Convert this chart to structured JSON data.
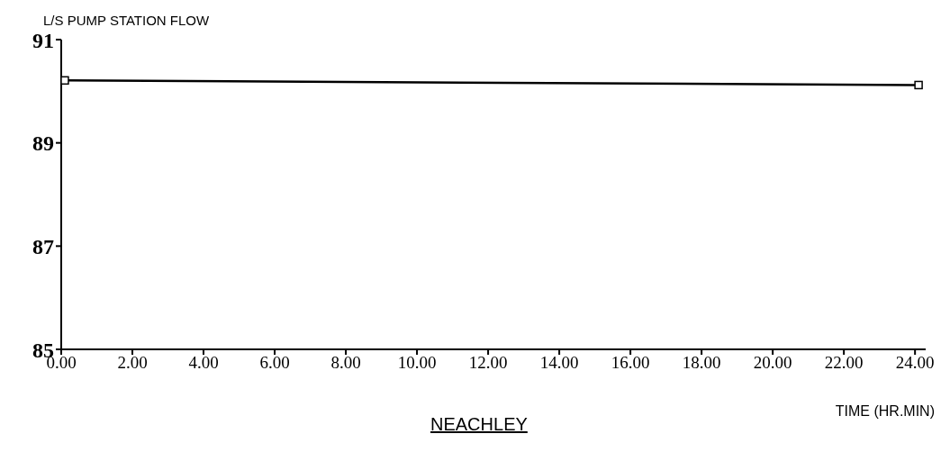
{
  "chart_data": {
    "type": "line",
    "title": "L/S PUMP STATION FLOW",
    "xlabel": "TIME (HR.MIN)",
    "annotations": [
      "NEACHLEY"
    ],
    "x": [
      0.1,
      24.1
    ],
    "series": [
      {
        "color": "#000000",
        "values": [
          90.21,
          90.12
        ]
      }
    ],
    "xlim": [
      0,
      24.3
    ],
    "xticks": [
      {
        "value": 0,
        "label": "0.00"
      },
      {
        "value": 2,
        "label": "2.00"
      },
      {
        "value": 4,
        "label": "4.00"
      },
      {
        "value": 6,
        "label": "6.00"
      },
      {
        "value": 8,
        "label": "8.00"
      },
      {
        "value": 10,
        "label": "10.00"
      },
      {
        "value": 12,
        "label": "12.00"
      },
      {
        "value": 14,
        "label": "14.00"
      },
      {
        "value": 16,
        "label": "16.00"
      },
      {
        "value": 18,
        "label": "18.00"
      },
      {
        "value": 20,
        "label": "20.00"
      },
      {
        "value": 22,
        "label": "22.00"
      },
      {
        "value": 24,
        "label": "24.00"
      }
    ],
    "ylim": [
      85,
      91
    ],
    "yticks": [
      85,
      87,
      89,
      91
    ],
    "marker": "square",
    "line_style": "solid",
    "grid": false,
    "legend": false
  }
}
